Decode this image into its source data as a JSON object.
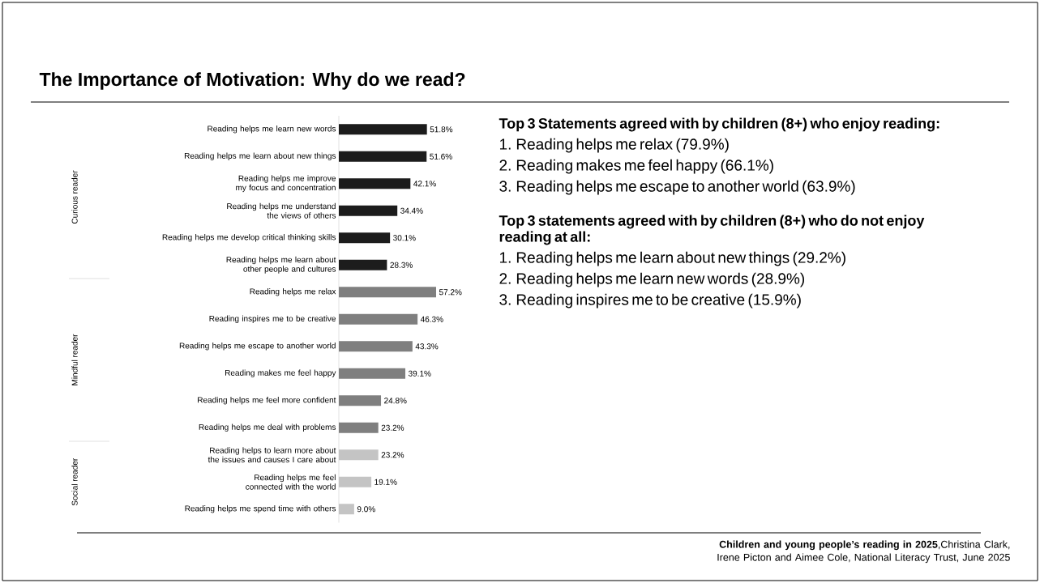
{
  "chart_data": {
    "type": "bar",
    "orientation": "horizontal",
    "title": "The Importance of Motivation: Why do we read?",
    "categories": [
      "Reading helps me learn new words",
      "Reading helps me learn about new things",
      "Reading helps me improve my focus and concentration",
      "Reading helps me understand the views of others",
      "Reading helps me develop critical thinking skills",
      "Reading helps me learn about other people and cultures",
      "Reading helps me relax",
      "Reading inspires me to be creative",
      "Reading helps me escape to another world",
      "Reading makes me feel happy",
      "Reading helps me feel more confident",
      "Reading helps me deal with problems",
      "Reading helps to learn more about the issues and causes I care about",
      "Reading helps me feel connected with the world",
      "Reading helps me spend time with others"
    ],
    "values": [
      51.8,
      51.6,
      42.1,
      34.4,
      30.1,
      28.3,
      57.2,
      46.3,
      43.3,
      39.1,
      24.8,
      23.2,
      23.2,
      19.1,
      9.0
    ],
    "value_labels": [
      "51.8%",
      "51.6%",
      "42.1%",
      "34.4%",
      "30.1%",
      "28.3%",
      "57.2%",
      "46.3%",
      "43.3%",
      "39.1%",
      "24.8%",
      "23.2%",
      "23.2%",
      "19.1%",
      "9.0%"
    ],
    "colors": [
      "#1c1c1c",
      "#1c1c1c",
      "#1c1c1c",
      "#1c1c1c",
      "#1c1c1c",
      "#1c1c1c",
      "#7f7f7f",
      "#7f7f7f",
      "#7f7f7f",
      "#7f7f7f",
      "#7f7f7f",
      "#7f7f7f",
      "#c4c4c4",
      "#c4c4c4",
      "#c4c4c4"
    ],
    "tick_labels": "y",
    "annotations": [
      "Curious reader",
      "Mindful reader",
      "Social reader",
      "Top 3 Statements agreed with by children (8+) who enjoy reading:",
      "1. Reading helps me relax (79.9%)",
      "2. Reading makes me feel happy (66.1%)",
      "3. Reading helps me escape to another world (63.9%)",
      "Top 3 statements agreed with by children (8+) who do not enjoy reading at all:",
      "1. Reading helps me learn about new things (29.2%)",
      "2. Reading helps me learn new words (28.9%)",
      "3. Reading inspires me to be creative (15.9%)",
      "**Children and young people’s reading in 2025**,Christina Clark, Irene Picton and Aimee Cole, National Literacy Trust, June 2025"
    ]
  }
}
